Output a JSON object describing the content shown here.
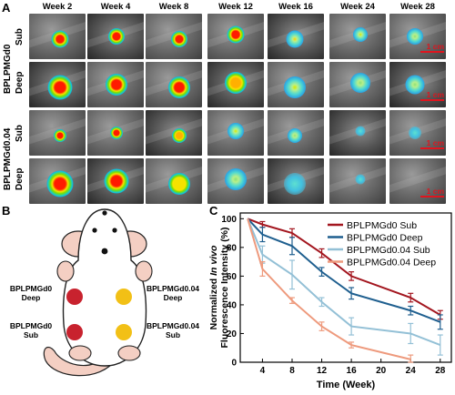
{
  "panels": {
    "a": "A",
    "b": "B",
    "c": "C"
  },
  "weeks": [
    "Week 2",
    "Week 4",
    "Week 8",
    "Week 12",
    "Week 16",
    "Week 24",
    "Week 28"
  ],
  "rows": [
    {
      "group": "BPLPMGd0",
      "depth": "Sub",
      "spots": [
        {
          "rel_intensity": 1.0,
          "kind": "solid",
          "size": 0.24
        },
        {
          "rel_intensity": 0.95,
          "kind": "solid",
          "size": 0.22
        },
        {
          "rel_intensity": 0.9,
          "kind": "solid",
          "size": 0.22
        },
        {
          "rel_intensity": 0.75,
          "kind": "solid",
          "size": 0.24
        },
        {
          "rel_intensity": 0.6,
          "kind": "diffuse",
          "size": 0.24
        },
        {
          "rel_intensity": 0.45,
          "kind": "diffuse",
          "size": 0.2
        },
        {
          "rel_intensity": 0.35,
          "kind": "diffuse",
          "size": 0.22
        }
      ]
    },
    {
      "group": "BPLPMGd0",
      "depth": "Deep",
      "spots": [
        {
          "rel_intensity": 1.0,
          "kind": "solid",
          "size": 0.34
        },
        {
          "rel_intensity": 0.9,
          "kind": "solid",
          "size": 0.3
        },
        {
          "rel_intensity": 0.8,
          "kind": "solid",
          "size": 0.3
        },
        {
          "rel_intensity": 0.65,
          "kind": "solid",
          "size": 0.3
        },
        {
          "rel_intensity": 0.5,
          "kind": "diffuse",
          "size": 0.3
        },
        {
          "rel_intensity": 0.38,
          "kind": "diffuse",
          "size": 0.28
        },
        {
          "rel_intensity": 0.3,
          "kind": "diffuse",
          "size": 0.26
        }
      ]
    },
    {
      "group": "BPLPMGd0.04",
      "depth": "Sub",
      "spots": [
        {
          "rel_intensity": 1.0,
          "kind": "solid",
          "size": 0.18
        },
        {
          "rel_intensity": 0.8,
          "kind": "solid",
          "size": 0.18
        },
        {
          "rel_intensity": 0.65,
          "kind": "solid",
          "size": 0.2
        },
        {
          "rel_intensity": 0.45,
          "kind": "diffuse",
          "size": 0.22
        },
        {
          "rel_intensity": 0.3,
          "kind": "diffuse",
          "size": 0.2
        },
        {
          "rel_intensity": 0.2,
          "kind": "faint",
          "size": 0.14
        },
        {
          "rel_intensity": 0.15,
          "kind": "faint",
          "size": 0.18
        }
      ]
    },
    {
      "group": "BPLPMGd0.04",
      "depth": "Deep",
      "spots": [
        {
          "rel_intensity": 1.0,
          "kind": "solid",
          "size": 0.36
        },
        {
          "rel_intensity": 0.75,
          "kind": "solid",
          "size": 0.34
        },
        {
          "rel_intensity": 0.5,
          "kind": "solid",
          "size": 0.3
        },
        {
          "rel_intensity": 0.3,
          "kind": "diffuse",
          "size": 0.3
        },
        {
          "rel_intensity": 0.15,
          "kind": "faint",
          "size": 0.3
        },
        {
          "rel_intensity": 0.05,
          "kind": "faint",
          "size": 0.14
        },
        {
          "rel_intensity": 0.0,
          "kind": "none",
          "size": 0
        }
      ]
    }
  ],
  "scale_bar": "1 cm",
  "mouse": {
    "left_top": "BPLPMGd0\nDeep",
    "left_bottom": "BPLPMGd0\nSub",
    "right_top": "BPLPMGd0.04\nDeep",
    "right_bottom": "BPLPMGd0.04\nSub",
    "dot_dark_color": "#c8222e",
    "dot_light_color": "#f2c016"
  },
  "chart_data": {
    "type": "line",
    "xlabel": "Time (Week)",
    "ylabel_line1_pre": "Normalized ",
    "ylabel_line1_em": "In vivo",
    "ylabel_line2": "Fluorescence Intensity (%)",
    "xticks": [
      4,
      8,
      12,
      16,
      20,
      24,
      28
    ],
    "xticks_labels": [
      "4",
      "8",
      "12",
      "16",
      "20",
      "24",
      "28"
    ],
    "yticks": [
      0,
      20,
      40,
      60,
      80,
      100
    ],
    "xlim": [
      1,
      29.5
    ],
    "ylim": [
      0,
      104
    ],
    "series": [
      {
        "name": "BPLPMGd0 Sub",
        "color": "#a3161f",
        "x": [
          2,
          4,
          8,
          12,
          16,
          24,
          28
        ],
        "y": [
          100,
          96,
          90,
          76,
          60,
          45,
          33
        ],
        "err": [
          1,
          2,
          3,
          3,
          3,
          3,
          3
        ]
      },
      {
        "name": "BPLPMGd0 Deep",
        "color": "#1f5f8f",
        "x": [
          2,
          4,
          8,
          12,
          16,
          24,
          28
        ],
        "y": [
          100,
          89,
          81,
          63,
          48,
          36,
          28
        ],
        "err": [
          1,
          5,
          6,
          3,
          4,
          3,
          5
        ]
      },
      {
        "name": "BPLPMGd0.04 Sub",
        "color": "#93c0d6",
        "x": [
          2,
          4,
          8,
          12,
          16,
          24,
          28
        ],
        "y": [
          100,
          75,
          61,
          42,
          25,
          20,
          12
        ],
        "err": [
          1,
          6,
          10,
          3,
          6,
          7,
          7
        ]
      },
      {
        "name": "BPLPMGd0.04 Deep",
        "color": "#ee9a7d",
        "x": [
          2,
          4,
          8,
          12,
          16,
          24,
          28
        ],
        "y": [
          100,
          65,
          43,
          25,
          12,
          2,
          null
        ],
        "err": [
          1,
          5,
          2,
          3,
          2,
          3,
          null
        ]
      }
    ],
    "legend": "top-right"
  }
}
